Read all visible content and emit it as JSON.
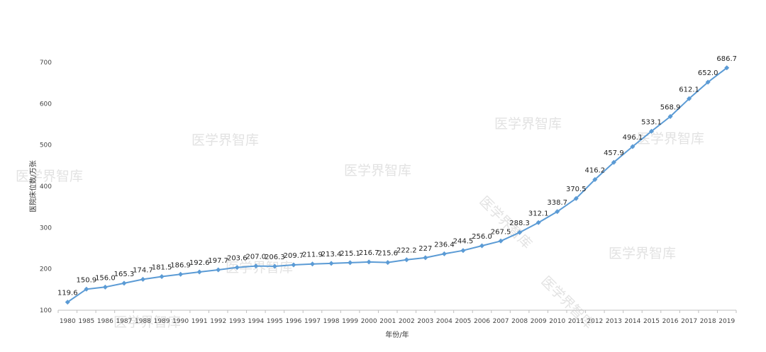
{
  "chart_data": {
    "type": "line",
    "title": "",
    "xlabel": "年份/年",
    "ylabel": "医院床位数/万张",
    "ylim": [
      100,
      700
    ],
    "yticks": [
      100,
      200,
      300,
      400,
      500,
      600,
      700
    ],
    "grid": false,
    "legend": "none",
    "categories": [
      "1980",
      "1985",
      "1986",
      "1987",
      "1988",
      "1989",
      "1990",
      "1991",
      "1992",
      "1993",
      "1994",
      "1995",
      "1996",
      "1997",
      "1998",
      "1999",
      "2000",
      "2001",
      "2002",
      "2003",
      "2004",
      "2005",
      "2006",
      "2007",
      "2008",
      "2009",
      "2010",
      "2011",
      "2012",
      "2013",
      "2014",
      "2015",
      "2016",
      "2017",
      "2018",
      "2019"
    ],
    "series": [
      {
        "values": [
          119.6,
          150.9,
          156.0,
          165.3,
          174.7,
          181.5,
          186.9,
          192.6,
          197.7,
          203.6,
          207.0,
          206.3,
          209.7,
          211.9,
          213.4,
          215.1,
          216.7,
          215.6,
          222.2,
          227,
          236.4,
          244.5,
          256.0,
          267.5,
          288.3,
          312.1,
          338.7,
          370.5,
          416.2,
          457.9,
          496.1,
          533.1,
          568.9,
          612.1,
          652.0,
          686.7
        ],
        "labels": [
          "119.6",
          "150.9",
          "156.0",
          "165.3",
          "174.7",
          "181.5",
          "186.9",
          "192.6",
          "197.7",
          "203.6",
          "207.0",
          "206.3",
          "209.7",
          "211.9",
          "213.4",
          "215.1",
          "216.7",
          "215.6",
          "222.2",
          "227",
          "236.4",
          "244.5",
          "256.0",
          "267.5",
          "288.3",
          "312.1",
          "338.7",
          "370.5",
          "416.2",
          "457.9",
          "496.1",
          "533.1",
          "568.9",
          "612.1",
          "652.0",
          "686.7"
        ]
      }
    ],
    "colors": {
      "line": "#5B9BD5",
      "axis": "#bfbfbf"
    }
  },
  "watermark": {
    "text": "医学界智库"
  }
}
